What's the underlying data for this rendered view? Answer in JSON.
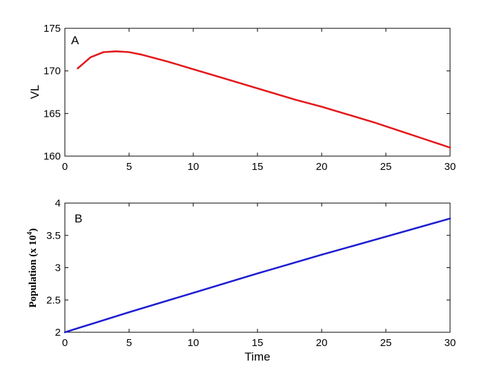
{
  "chart_data": [
    {
      "type": "line",
      "panel_label": "A",
      "xlabel": "",
      "ylabel": "VL",
      "xlim": [
        0,
        30
      ],
      "ylim": [
        160,
        175
      ],
      "xticks": [
        0,
        5,
        10,
        15,
        20,
        25,
        30
      ],
      "yticks": [
        160,
        165,
        170,
        175
      ],
      "grid": false,
      "series": [
        {
          "color": "#e31a1c",
          "x": [
            1,
            2,
            3,
            4,
            5,
            6,
            8,
            10,
            12,
            14,
            16,
            18,
            20,
            22,
            24,
            26,
            28,
            30
          ],
          "y": [
            170.3,
            171.6,
            172.2,
            172.3,
            172.2,
            171.9,
            171.1,
            170.2,
            169.3,
            168.4,
            167.5,
            166.6,
            165.8,
            164.9,
            164.0,
            163.0,
            162.0,
            161.0
          ]
        }
      ]
    },
    {
      "type": "line",
      "panel_label": "B",
      "xlabel": "Time",
      "ylabel": "Population (x 10",
      "ylabel_sup": "4",
      "ylabel_tail": ")",
      "xlim": [
        0,
        30
      ],
      "ylim": [
        2,
        4
      ],
      "xticks": [
        0,
        5,
        10,
        15,
        20,
        25,
        30
      ],
      "yticks": [
        2,
        2.5,
        3,
        3.5,
        4
      ],
      "ytick_labels": [
        "2",
        "2.5",
        "3",
        "3.5",
        "4"
      ],
      "grid": false,
      "series": [
        {
          "color": "#1f1fd0",
          "x": [
            0,
            5,
            10,
            15,
            20,
            25,
            30
          ],
          "y": [
            2.0,
            2.31,
            2.61,
            2.91,
            3.2,
            3.48,
            3.76
          ]
        }
      ]
    }
  ]
}
